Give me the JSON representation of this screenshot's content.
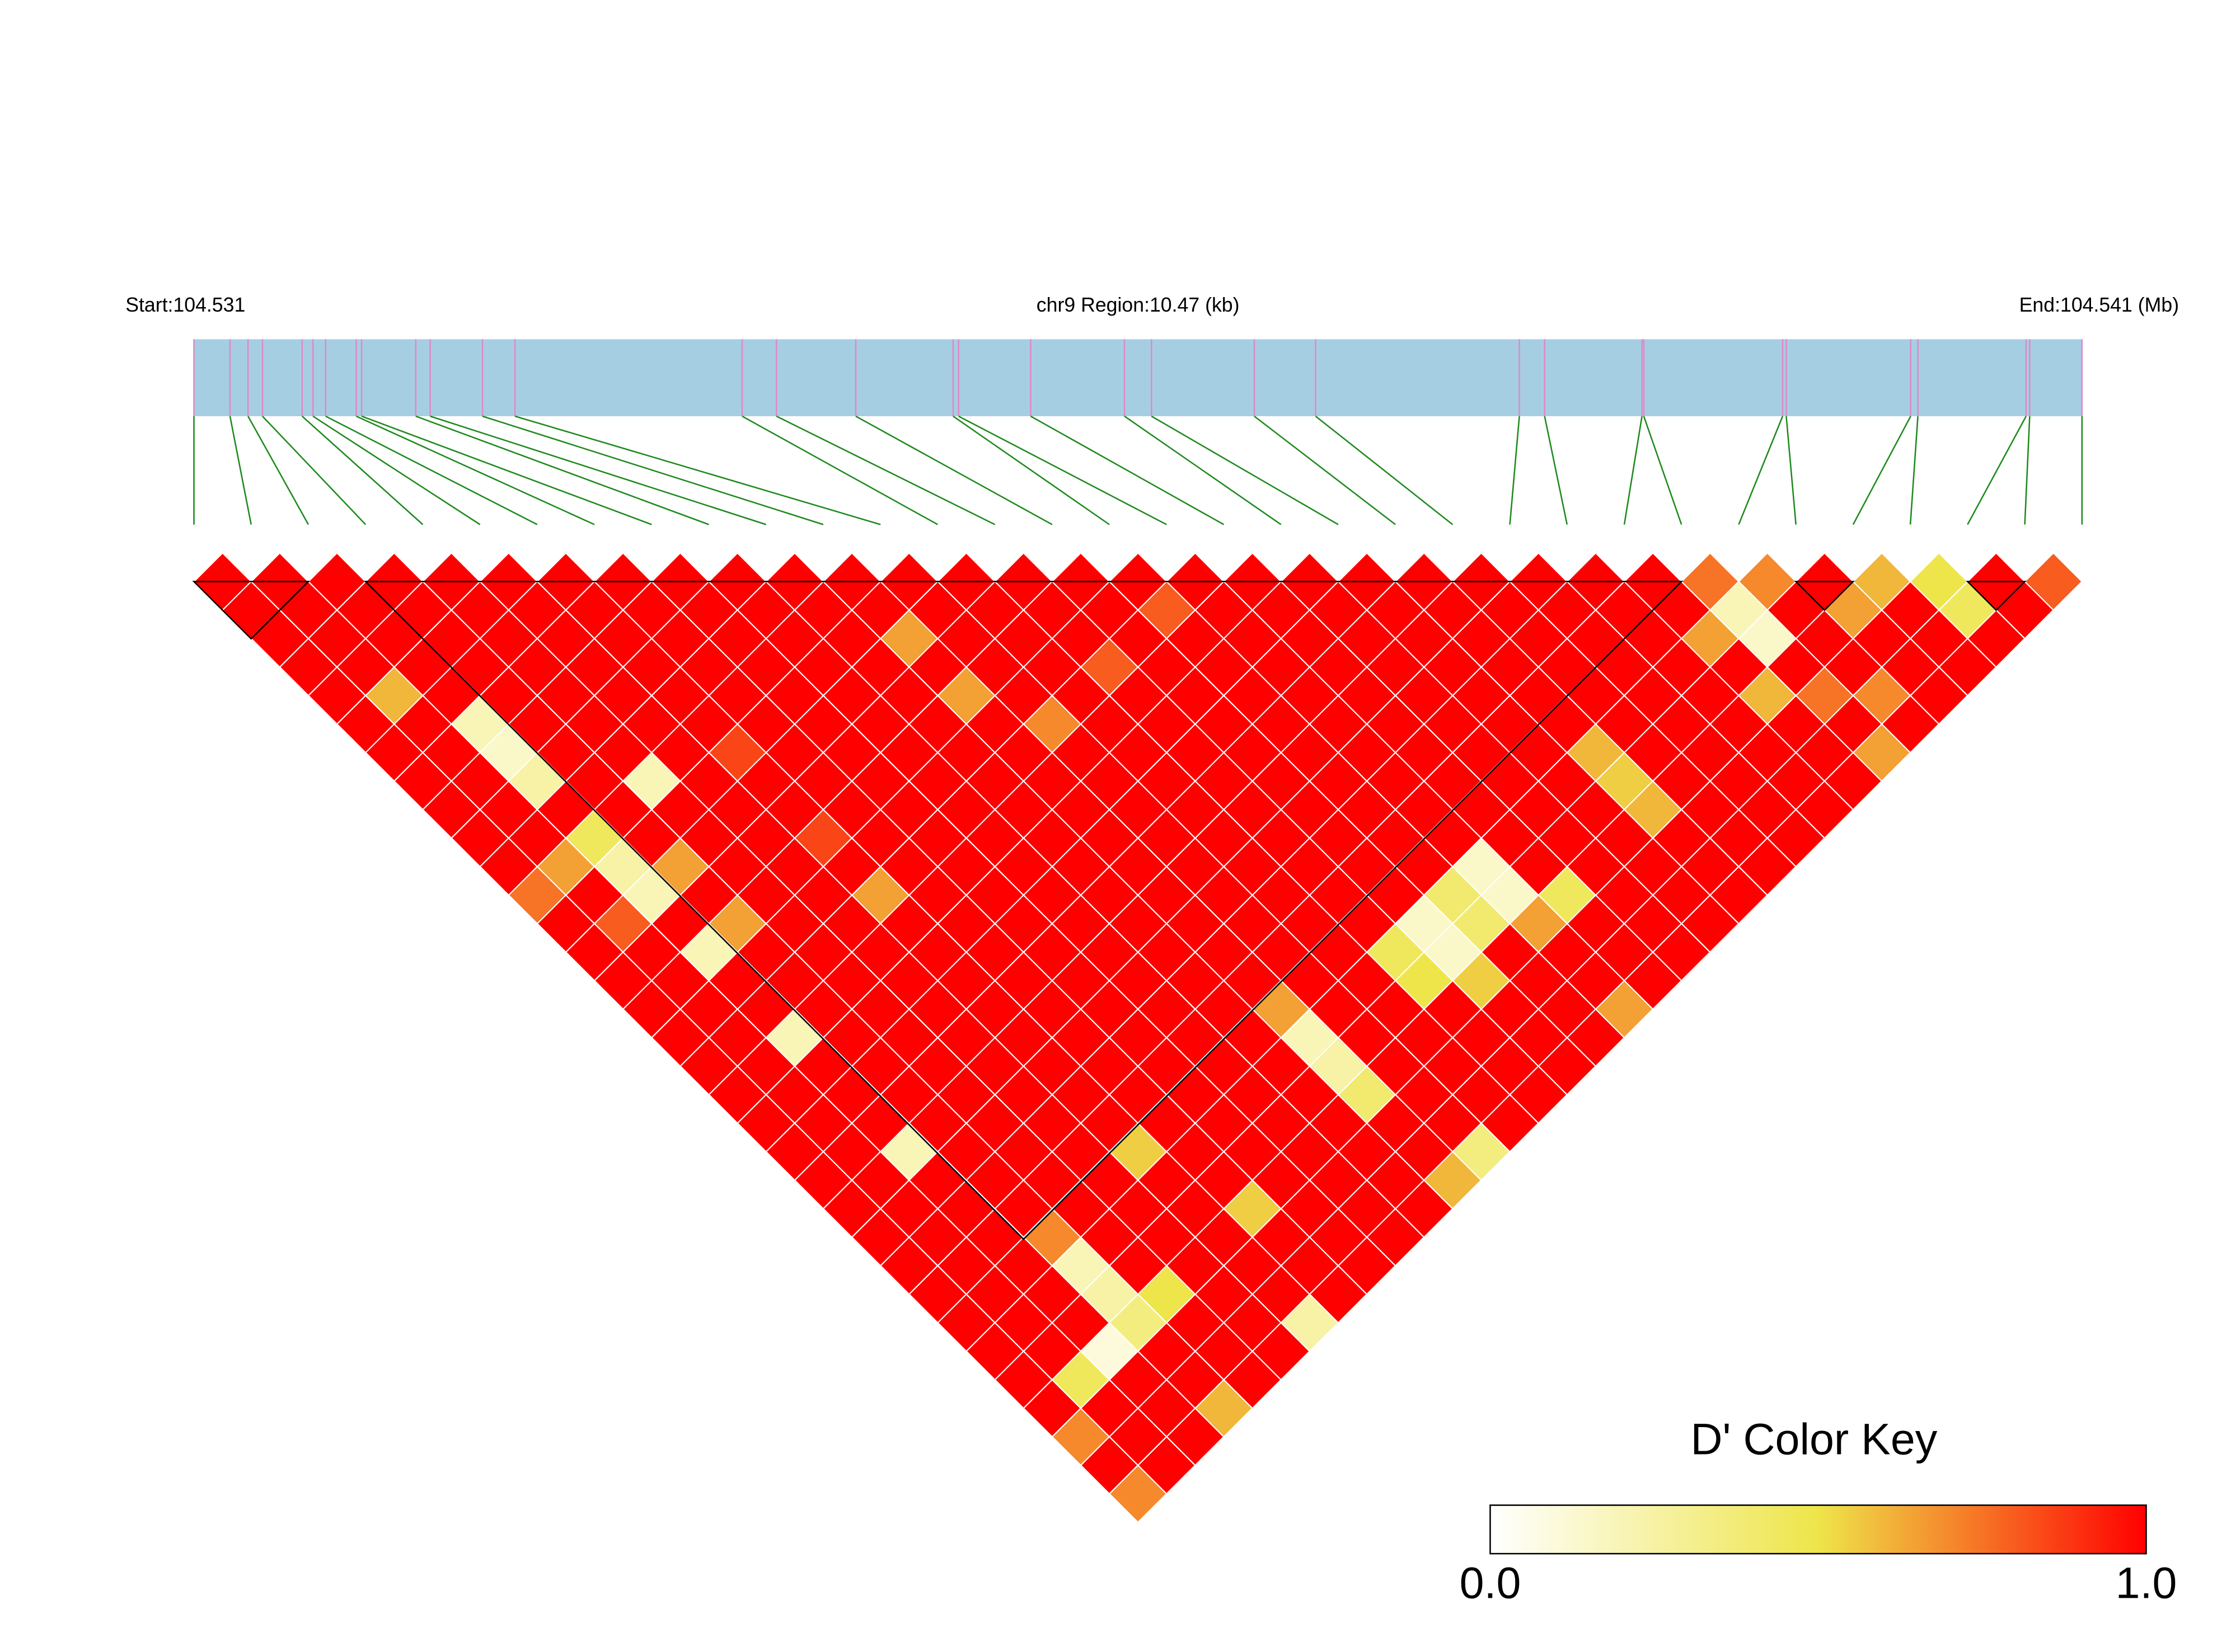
{
  "chart_data": {
    "type": "ld-heatmap",
    "title": "chr9 Region:10.47 (kb)",
    "start_label": "Start:104.531",
    "end_label": "End:104.541 (Mb)",
    "xlim": [
      0,
      10.47
    ],
    "positions": [
      0,
      0.2,
      0.3,
      0.38,
      0.6,
      0.66,
      0.73,
      0.9,
      0.93,
      1.23,
      1.31,
      1.6,
      1.78,
      3.04,
      3.23,
      3.67,
      4.21,
      4.24,
      4.64,
      5.16,
      5.31,
      5.88,
      6.22,
      7.35,
      7.49,
      8.03,
      8.04,
      8.81,
      8.83,
      9.52,
      9.56,
      10.16,
      10.18,
      10.47
    ],
    "bar_color": "#a6cee3",
    "marker_color": "#e088c8",
    "link_color": "#1e8a1e",
    "block_color": "#000000",
    "blocks": [
      [
        0,
        2
      ],
      [
        3,
        26
      ],
      [
        28,
        29
      ],
      [
        31,
        32
      ]
    ],
    "dprime": [
      [
        1,
        1,
        1,
        1,
        1,
        1,
        1,
        1,
        1,
        1,
        1,
        0.75,
        1,
        1,
        1,
        1,
        1,
        1,
        1,
        1,
        1,
        1,
        1,
        1,
        1,
        1,
        1,
        1,
        1,
        1,
        0.7,
        1,
        0.7
      ],
      [
        1,
        1,
        1,
        1,
        0.6,
        1,
        1,
        1,
        1,
        1,
        0.65,
        1,
        0.8,
        1,
        1,
        1,
        1,
        1,
        1,
        1,
        1,
        1,
        1,
        1,
        1,
        1,
        1,
        1,
        0.45,
        1,
        1,
        1
      ],
      [
        1,
        1,
        1,
        1,
        1,
        0.2,
        0.15,
        0.25,
        1,
        0.45,
        0.25,
        0.2,
        1,
        0.2,
        1,
        1,
        0.2,
        1,
        1,
        1,
        0.2,
        1,
        1,
        1,
        1,
        1,
        1,
        0.1,
        1,
        1,
        1
      ],
      [
        1,
        1,
        1,
        1,
        1,
        1,
        1,
        1,
        1,
        1,
        0.65,
        1,
        0.65,
        1,
        1,
        1,
        1,
        1,
        1,
        1,
        1,
        1,
        1,
        0.7,
        0.2,
        0.25,
        0.35,
        1,
        1,
        0.6
      ],
      [
        1,
        1,
        1,
        1,
        1,
        1,
        1,
        0.2,
        1,
        1,
        1,
        1,
        1,
        1,
        1,
        1,
        1,
        1,
        1,
        1,
        1,
        1,
        1,
        1,
        1,
        0.5,
        1,
        1,
        1
      ],
      [
        1,
        1,
        1,
        1,
        1,
        1,
        1,
        1,
        1,
        1,
        1,
        1,
        1,
        1,
        1,
        1,
        1,
        1,
        1,
        1,
        1,
        1,
        1,
        1,
        1,
        1,
        1,
        1
      ],
      [
        1,
        1,
        1,
        1,
        1,
        1,
        0.85,
        1,
        1,
        0.85,
        1,
        0.65,
        1,
        1,
        1,
        1,
        1,
        1,
        1,
        1,
        0.55,
        1,
        1,
        1,
        1,
        1,
        0.25
      ],
      [
        1,
        1,
        1,
        1,
        1,
        1,
        1,
        1,
        1,
        1,
        1,
        1,
        1,
        1,
        1,
        1,
        1,
        1,
        1,
        1,
        1,
        1,
        0.55,
        1,
        1,
        1
      ],
      [
        1,
        1,
        1,
        1,
        1,
        1,
        1,
        1,
        1,
        1,
        1,
        1,
        1,
        1,
        1,
        1,
        1,
        1,
        1,
        1,
        1,
        1,
        1,
        1,
        1
      ],
      [
        1,
        1,
        1,
        1,
        1,
        1,
        1,
        1,
        1,
        1,
        1,
        1,
        1,
        1,
        1,
        1,
        1,
        1,
        1,
        1,
        1,
        1,
        1,
        1
      ],
      [
        1,
        1,
        1,
        1,
        1,
        1,
        1,
        1,
        1,
        1,
        1,
        1,
        1,
        1,
        1,
        1,
        1,
        1,
        1,
        1,
        1,
        1,
        1
      ],
      [
        1,
        1,
        0.65,
        1,
        0.65,
        1,
        1,
        1,
        1,
        1,
        1,
        1,
        1,
        1,
        1,
        0.65,
        0.2,
        0.25,
        0.4,
        1,
        1,
        0.6
      ],
      [
        1,
        1,
        1,
        1,
        1,
        0.7,
        1,
        1,
        1,
        1,
        1,
        1,
        1,
        1,
        1,
        1,
        1,
        1,
        1,
        1,
        0.35
      ],
      [
        1,
        1,
        1,
        1,
        1,
        1,
        1,
        1,
        1,
        1,
        1,
        1,
        1,
        1,
        1,
        1,
        1,
        1,
        1,
        1
      ],
      [
        1,
        1,
        1,
        0.8,
        1,
        1,
        1,
        1,
        1,
        1,
        1,
        1,
        1,
        0.45,
        0.5,
        1,
        1,
        1,
        1
      ],
      [
        1,
        1,
        1,
        1,
        1,
        1,
        1,
        1,
        1,
        1,
        1,
        1,
        0.15,
        0.15,
        0.55,
        1,
        1,
        1
      ],
      [
        1,
        0.8,
        1,
        1,
        1,
        1,
        1,
        1,
        1,
        1,
        1,
        0.4,
        0.4,
        1,
        1,
        1,
        1
      ],
      [
        1,
        1,
        1,
        1,
        1,
        1,
        1,
        1,
        1,
        1,
        0.15,
        0.15,
        0.65,
        1,
        1,
        0.65
      ],
      [
        1,
        1,
        1,
        1,
        1,
        1,
        1,
        1,
        1,
        1,
        1,
        0.45,
        1,
        1,
        1
      ],
      [
        1,
        1,
        1,
        1,
        1,
        1,
        1,
        1,
        1,
        1,
        1,
        1,
        1,
        1
      ],
      [
        1,
        1,
        1,
        1,
        1,
        1,
        1,
        1,
        1,
        1,
        1,
        1,
        1
      ],
      [
        1,
        1,
        1,
        1,
        1,
        1,
        0.6,
        0.55,
        0.6,
        1,
        1,
        1
      ],
      [
        1,
        1,
        1,
        1,
        1,
        1,
        1,
        1,
        1,
        1,
        1
      ],
      [
        1,
        1,
        1,
        1,
        1,
        1,
        1,
        1,
        1,
        1
      ],
      [
        1,
        1,
        1,
        1,
        1,
        1,
        1,
        1,
        1
      ],
      [
        1,
        1,
        0.65,
        1,
        0.6,
        1,
        1,
        1
      ],
      [
        0.75,
        0.2,
        0.15,
        1,
        0.75,
        1,
        0.65
      ],
      [
        0.7,
        1,
        1,
        1,
        0.7,
        1
      ],
      [
        1,
        0.65,
        1,
        1,
        1
      ],
      [
        0.6,
        1,
        1,
        1
      ],
      [
        0.5,
        0.45,
        1
      ],
      [
        1,
        1
      ],
      [
        0.8
      ]
    ],
    "colorbar": {
      "title": "D' Color Key",
      "colormap": [
        "#ffffff",
        "#eee54a",
        "#ff0000"
      ],
      "ticks": [
        {
          "value": 0,
          "label": "0.0"
        },
        {
          "value": 1,
          "label": "1.0"
        }
      ]
    }
  }
}
